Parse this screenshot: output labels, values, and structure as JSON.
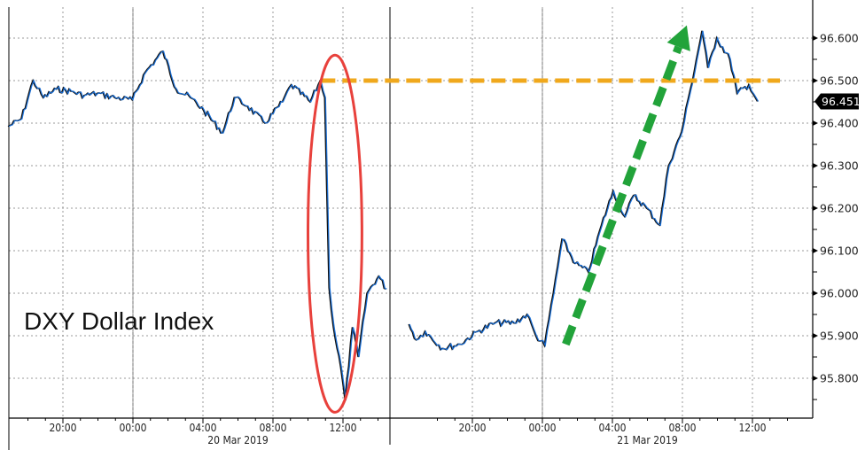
{
  "chart_data": {
    "type": "line",
    "title": "DXY Dollar Index",
    "xlabel": "",
    "ylabel": "",
    "ylim": [
      95.71,
      96.66
    ],
    "y_ticks": [
      "95.800",
      "95.900",
      "96.000",
      "96.100",
      "96.200",
      "96.300",
      "96.400",
      "96.500",
      "96.600"
    ],
    "x_ticks": [
      {
        "t": "03-19 20:00",
        "label": "20:00"
      },
      {
        "t": "03-20 00:00",
        "label": "00:00"
      },
      {
        "t": "03-20 04:00",
        "label": "04:00"
      },
      {
        "t": "03-20 08:00",
        "label": "08:00"
      },
      {
        "t": "03-20 12:00",
        "label": "12:00"
      },
      {
        "t": "03-20 20:00",
        "label": "20:00"
      },
      {
        "t": "03-21 00:00",
        "label": "00:00"
      },
      {
        "t": "03-21 04:00",
        "label": "04:00"
      },
      {
        "t": "03-21 08:00",
        "label": "08:00"
      },
      {
        "t": "03-21 12:00",
        "label": "12:00"
      }
    ],
    "date_labels": [
      {
        "t": "03-20 06:00",
        "label": "20 Mar 2019"
      },
      {
        "t": "03-21 06:00",
        "label": "21 Mar 2019"
      }
    ],
    "grid": true,
    "last_price": "96.451",
    "colors": {
      "line": "#1a6fd6",
      "line_shadow": "#111111",
      "ellipse": "#e8413c",
      "level": "#f0a81c",
      "arrow": "#22a33a",
      "last_price_bg": "#000000"
    },
    "annotations": {
      "level_line": {
        "value": 96.5,
        "from": "03-20 10:45",
        "style": "dashed-orange"
      },
      "ellipse": {
        "from": "03-20 10:00",
        "to": "03-20 13:05",
        "ymin": 95.72,
        "ymax": 96.56,
        "color": "red"
      },
      "arrow": {
        "from": {
          "t": "03-21 01:20",
          "y": 95.88
        },
        "to": {
          "t": "03-21 08:15",
          "y": 96.63
        },
        "style": "dashed-green"
      }
    },
    "series": [
      {
        "points": [
          [
            "03-19 16:55",
            96.392
          ],
          [
            "03-19 17:40",
            96.41
          ],
          [
            "03-19 18:20",
            96.5
          ],
          [
            "03-19 18:55",
            96.46
          ],
          [
            "03-19 19:40",
            96.48
          ],
          [
            "03-19 20:30",
            96.475
          ],
          [
            "03-19 21:15",
            96.465
          ],
          [
            "03-19 22:00",
            96.47
          ],
          [
            "03-19 23:00",
            96.46
          ],
          [
            "03-20 00:00",
            96.455
          ],
          [
            "03-20 00:45",
            96.52
          ],
          [
            "03-20 01:45",
            96.569
          ],
          [
            "03-20 02:30",
            96.48
          ],
          [
            "03-20 03:20",
            96.46
          ],
          [
            "03-20 04:05",
            96.43
          ],
          [
            "03-20 05:10",
            96.377
          ],
          [
            "03-20 05:50",
            96.46
          ],
          [
            "03-20 06:35",
            96.44
          ],
          [
            "03-20 07:35",
            96.4
          ],
          [
            "03-20 08:35",
            96.45
          ],
          [
            "03-20 09:05",
            96.49
          ],
          [
            "03-20 10:10",
            96.45
          ],
          [
            "03-20 10:45",
            96.5
          ],
          [
            "03-20 11:00",
            96.46
          ],
          [
            "03-20 11:15",
            96.013
          ],
          [
            "03-20 11:30",
            95.92
          ],
          [
            "03-20 11:55",
            95.825
          ],
          [
            "03-20 12:10",
            95.748
          ],
          [
            "03-20 12:35",
            95.92
          ],
          [
            "03-20 12:55",
            95.85
          ],
          [
            "03-20 13:25",
            96.0
          ],
          [
            "03-20 14:05",
            96.04
          ],
          [
            "03-20 14:30",
            96.01
          ]
        ]
      },
      {
        "points": [
          [
            "03-20 16:25",
            95.927
          ],
          [
            "03-20 16:50",
            95.89
          ],
          [
            "03-20 17:20",
            95.91
          ],
          [
            "03-20 18:20",
            95.87
          ],
          [
            "03-20 19:20",
            95.88
          ],
          [
            "03-20 20:20",
            95.91
          ],
          [
            "03-20 21:20",
            95.93
          ],
          [
            "03-20 22:25",
            95.93
          ],
          [
            "03-20 23:10",
            95.95
          ],
          [
            "03-20 23:40",
            95.9
          ],
          [
            "03-21 00:10",
            95.877
          ],
          [
            "03-21 00:40",
            96.0
          ],
          [
            "03-21 01:10",
            96.127
          ],
          [
            "03-21 01:55",
            96.07
          ],
          [
            "03-21 02:40",
            96.05
          ],
          [
            "03-21 03:25",
            96.16
          ],
          [
            "03-21 04:05",
            96.24
          ],
          [
            "03-21 04:45",
            96.18
          ],
          [
            "03-21 05:15",
            96.23
          ],
          [
            "03-21 06:00",
            96.2
          ],
          [
            "03-21 06:45",
            96.16
          ],
          [
            "03-21 07:15",
            96.3
          ],
          [
            "03-21 08:00",
            96.38
          ],
          [
            "03-21 08:30",
            96.48
          ],
          [
            "03-21 09:10",
            96.617
          ],
          [
            "03-21 09:30",
            96.53
          ],
          [
            "03-21 10:00",
            96.6
          ],
          [
            "03-21 10:45",
            96.55
          ],
          [
            "03-21 11:10",
            96.47
          ],
          [
            "03-21 11:50",
            96.49
          ],
          [
            "03-21 12:20",
            96.451
          ]
        ]
      }
    ]
  }
}
